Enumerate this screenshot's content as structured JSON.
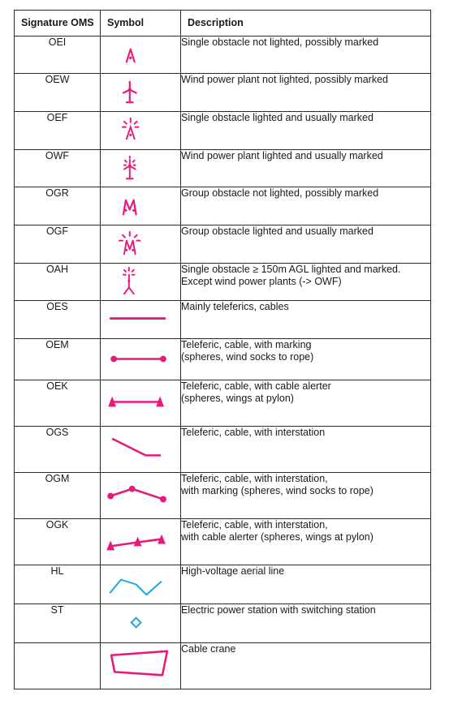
{
  "colors": {
    "obstacle": "#e8197a",
    "power_line": "#1aa6e0",
    "border": "#2b2b2b"
  },
  "header": {
    "code": "Signature OMS",
    "symbol": "Symbol",
    "description": "Description"
  },
  "rows": [
    {
      "code": "OEI",
      "symbol_icon": "single-obstacle-unlit-icon",
      "description": "Single obstacle not lighted, possibly marked"
    },
    {
      "code": "OEW",
      "symbol_icon": "wind-power-plant-unlit-icon",
      "description": "Wind power plant not lighted, possibly marked"
    },
    {
      "code": "OEF",
      "symbol_icon": "single-obstacle-lit-icon",
      "description": "Single obstacle lighted and usually marked"
    },
    {
      "code": "OWF",
      "symbol_icon": "wind-power-plant-lit-icon",
      "description": "Wind power plant lighted and usually marked"
    },
    {
      "code": "OGR",
      "symbol_icon": "group-obstacle-unlit-icon",
      "description": "Group obstacle not lighted, possibly marked"
    },
    {
      "code": "OGF",
      "symbol_icon": "group-obstacle-lit-icon",
      "description": "Group obstacle lighted and usually marked"
    },
    {
      "code": "OAH",
      "symbol_icon": "high-obstacle-lit-icon",
      "description": "Single obstacle ≥ 150m AGL lighted and marked.",
      "description_2": "Except wind power plants (-> OWF)"
    },
    {
      "code": "OES",
      "symbol_icon": "cable-line-icon",
      "description": "Mainly teleferics, cables"
    },
    {
      "code": "OEM",
      "symbol_icon": "cable-marked-icon",
      "description": "Teleferic, cable, with marking",
      "description_2": "(spheres, wind socks to rope)"
    },
    {
      "code": "OEK",
      "symbol_icon": "cable-alerter-icon",
      "description": "Teleferic, cable, with cable alerter",
      "description_2": "(spheres, wings at pylon)"
    },
    {
      "code": "OGS",
      "symbol_icon": "cable-interstation-icon",
      "description": "Teleferic, cable, with interstation"
    },
    {
      "code": "OGM",
      "symbol_icon": "cable-interstation-marked-icon",
      "description": "Teleferic, cable, with interstation,",
      "description_2": "with marking (spheres, wind socks to rope)"
    },
    {
      "code": "OGK",
      "symbol_icon": "cable-interstation-alerter-icon",
      "description": "Teleferic, cable, with interstation,",
      "description_2": "with cable alerter  (spheres, wings at pylon)"
    },
    {
      "code": "HL",
      "symbol_icon": "high-voltage-line-icon",
      "description": "High-voltage aerial line"
    },
    {
      "code": "ST",
      "symbol_icon": "power-station-icon",
      "description": "Electric power station with switching station"
    },
    {
      "code": "",
      "symbol_icon": "cable-crane-icon",
      "description": "Cable crane"
    }
  ]
}
